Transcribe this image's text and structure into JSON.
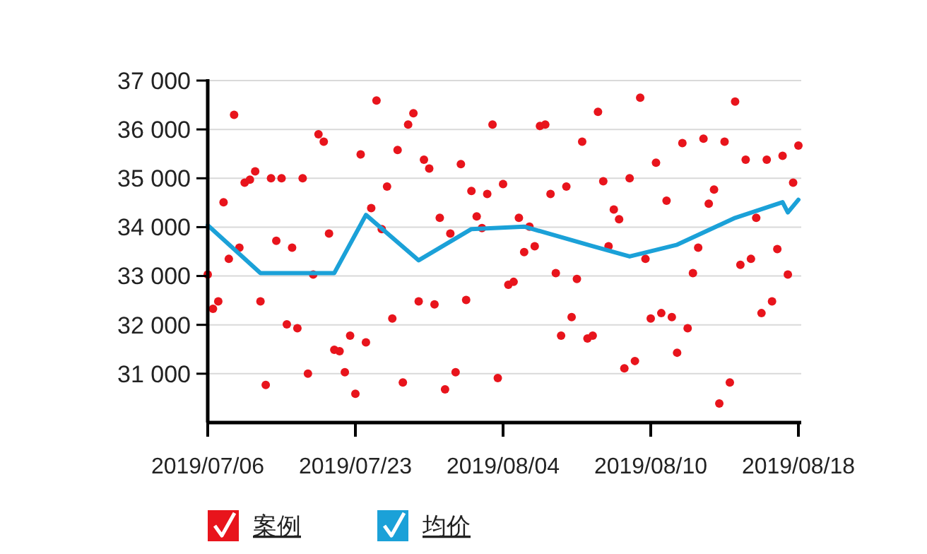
{
  "chart_data": {
    "type": "scatter",
    "ylim": [
      30000,
      37000
    ],
    "categories": [
      "2019/07/06",
      null,
      null,
      null,
      null,
      null,
      null,
      null,
      null,
      null,
      null,
      null,
      null,
      null,
      null,
      null,
      null,
      null,
      null,
      null,
      null,
      null,
      null,
      null,
      null,
      null,
      null,
      null,
      "2019/07/23",
      null,
      null,
      null,
      null,
      null,
      null,
      null,
      null,
      null,
      null,
      null,
      null,
      null,
      null,
      null,
      null,
      null,
      null,
      null,
      null,
      null,
      null,
      null,
      null,
      null,
      null,
      null,
      "2019/08/04",
      null,
      null,
      null,
      null,
      null,
      null,
      null,
      null,
      null,
      null,
      null,
      null,
      null,
      null,
      null,
      null,
      null,
      null,
      null,
      null,
      null,
      null,
      null,
      null,
      null,
      null,
      null,
      "2019/08/10",
      null,
      null,
      null,
      null,
      null,
      null,
      null,
      null,
      null,
      null,
      null,
      null,
      null,
      null,
      null,
      null,
      null,
      null,
      null,
      null,
      null,
      null,
      null,
      null,
      null,
      null,
      null,
      "2019/08/18"
    ],
    "yticks": [
      {
        "value": 31000,
        "label": "31 000"
      },
      {
        "value": 32000,
        "label": "32 000"
      },
      {
        "value": 33000,
        "label": "33 000"
      },
      {
        "value": 34000,
        "label": "34 000"
      },
      {
        "value": 35000,
        "label": "35 000"
      },
      {
        "value": 36000,
        "label": "36 000"
      },
      {
        "value": 37000,
        "label": "37 000"
      }
    ],
    "grid": "y",
    "legend": "bottom left",
    "series": [
      {
        "name": "案例",
        "marker": "circle",
        "color": "#e8141c",
        "values": [
          33030,
          32330,
          32480,
          34510,
          33350,
          36300,
          33580,
          34910,
          34970,
          35140,
          32480,
          30770,
          35000,
          33720,
          35000,
          32010,
          33580,
          31930,
          35000,
          31000,
          33030,
          35900,
          35750,
          33870,
          31490,
          31460,
          31030,
          31780,
          30590,
          35490,
          31640,
          34390,
          36590,
          33960,
          34830,
          32130,
          35580,
          30820,
          36100,
          36330,
          32480,
          35380,
          35200,
          32420,
          34190,
          30680,
          33870,
          31030,
          35290,
          32510,
          34740,
          34220,
          33980,
          34680,
          36100,
          30910,
          34880,
          32820,
          32880,
          34190,
          33490,
          34010,
          33610,
          36070,
          36100,
          34680,
          33060,
          31780,
          34830,
          32160,
          32940,
          35750,
          31720,
          31780,
          36360,
          34940,
          33610,
          34360,
          34160,
          31110,
          35000,
          31260,
          36650,
          33350,
          32130,
          35320,
          32240,
          34540,
          32160,
          31430,
          35720,
          31930,
          33060,
          33580,
          35810,
          34480,
          34770,
          30390,
          35750,
          30820,
          36570,
          33230,
          35380,
          33350,
          34190,
          32240,
          35380,
          32480,
          33550,
          35460,
          33030,
          34910,
          35670
        ]
      },
      {
        "name": "均价",
        "type": "line",
        "marker": "none",
        "line_style": "solid",
        "color": "#1ba1d8",
        "values": [
          34040,
          null,
          null,
          null,
          null,
          null,
          null,
          null,
          null,
          null,
          33060,
          null,
          null,
          null,
          null,
          null,
          null,
          null,
          null,
          null,
          null,
          null,
          null,
          null,
          33060,
          null,
          null,
          null,
          null,
          null,
          34250,
          null,
          null,
          null,
          null,
          null,
          null,
          null,
          null,
          null,
          33320,
          null,
          null,
          null,
          null,
          null,
          null,
          null,
          null,
          null,
          33960,
          null,
          null,
          null,
          null,
          null,
          null,
          null,
          null,
          null,
          34010,
          null,
          null,
          null,
          null,
          null,
          null,
          null,
          null,
          null,
          null,
          null,
          null,
          33610,
          null,
          null,
          null,
          null,
          null,
          null,
          33400,
          null,
          null,
          null,
          null,
          null,
          null,
          null,
          null,
          33640,
          null,
          null,
          null,
          null,
          null,
          null,
          null,
          null,
          null,
          null,
          34190,
          null,
          null,
          null,
          null,
          null,
          null,
          null,
          null,
          34510,
          34300,
          null,
          34560
        ]
      }
    ]
  }
}
